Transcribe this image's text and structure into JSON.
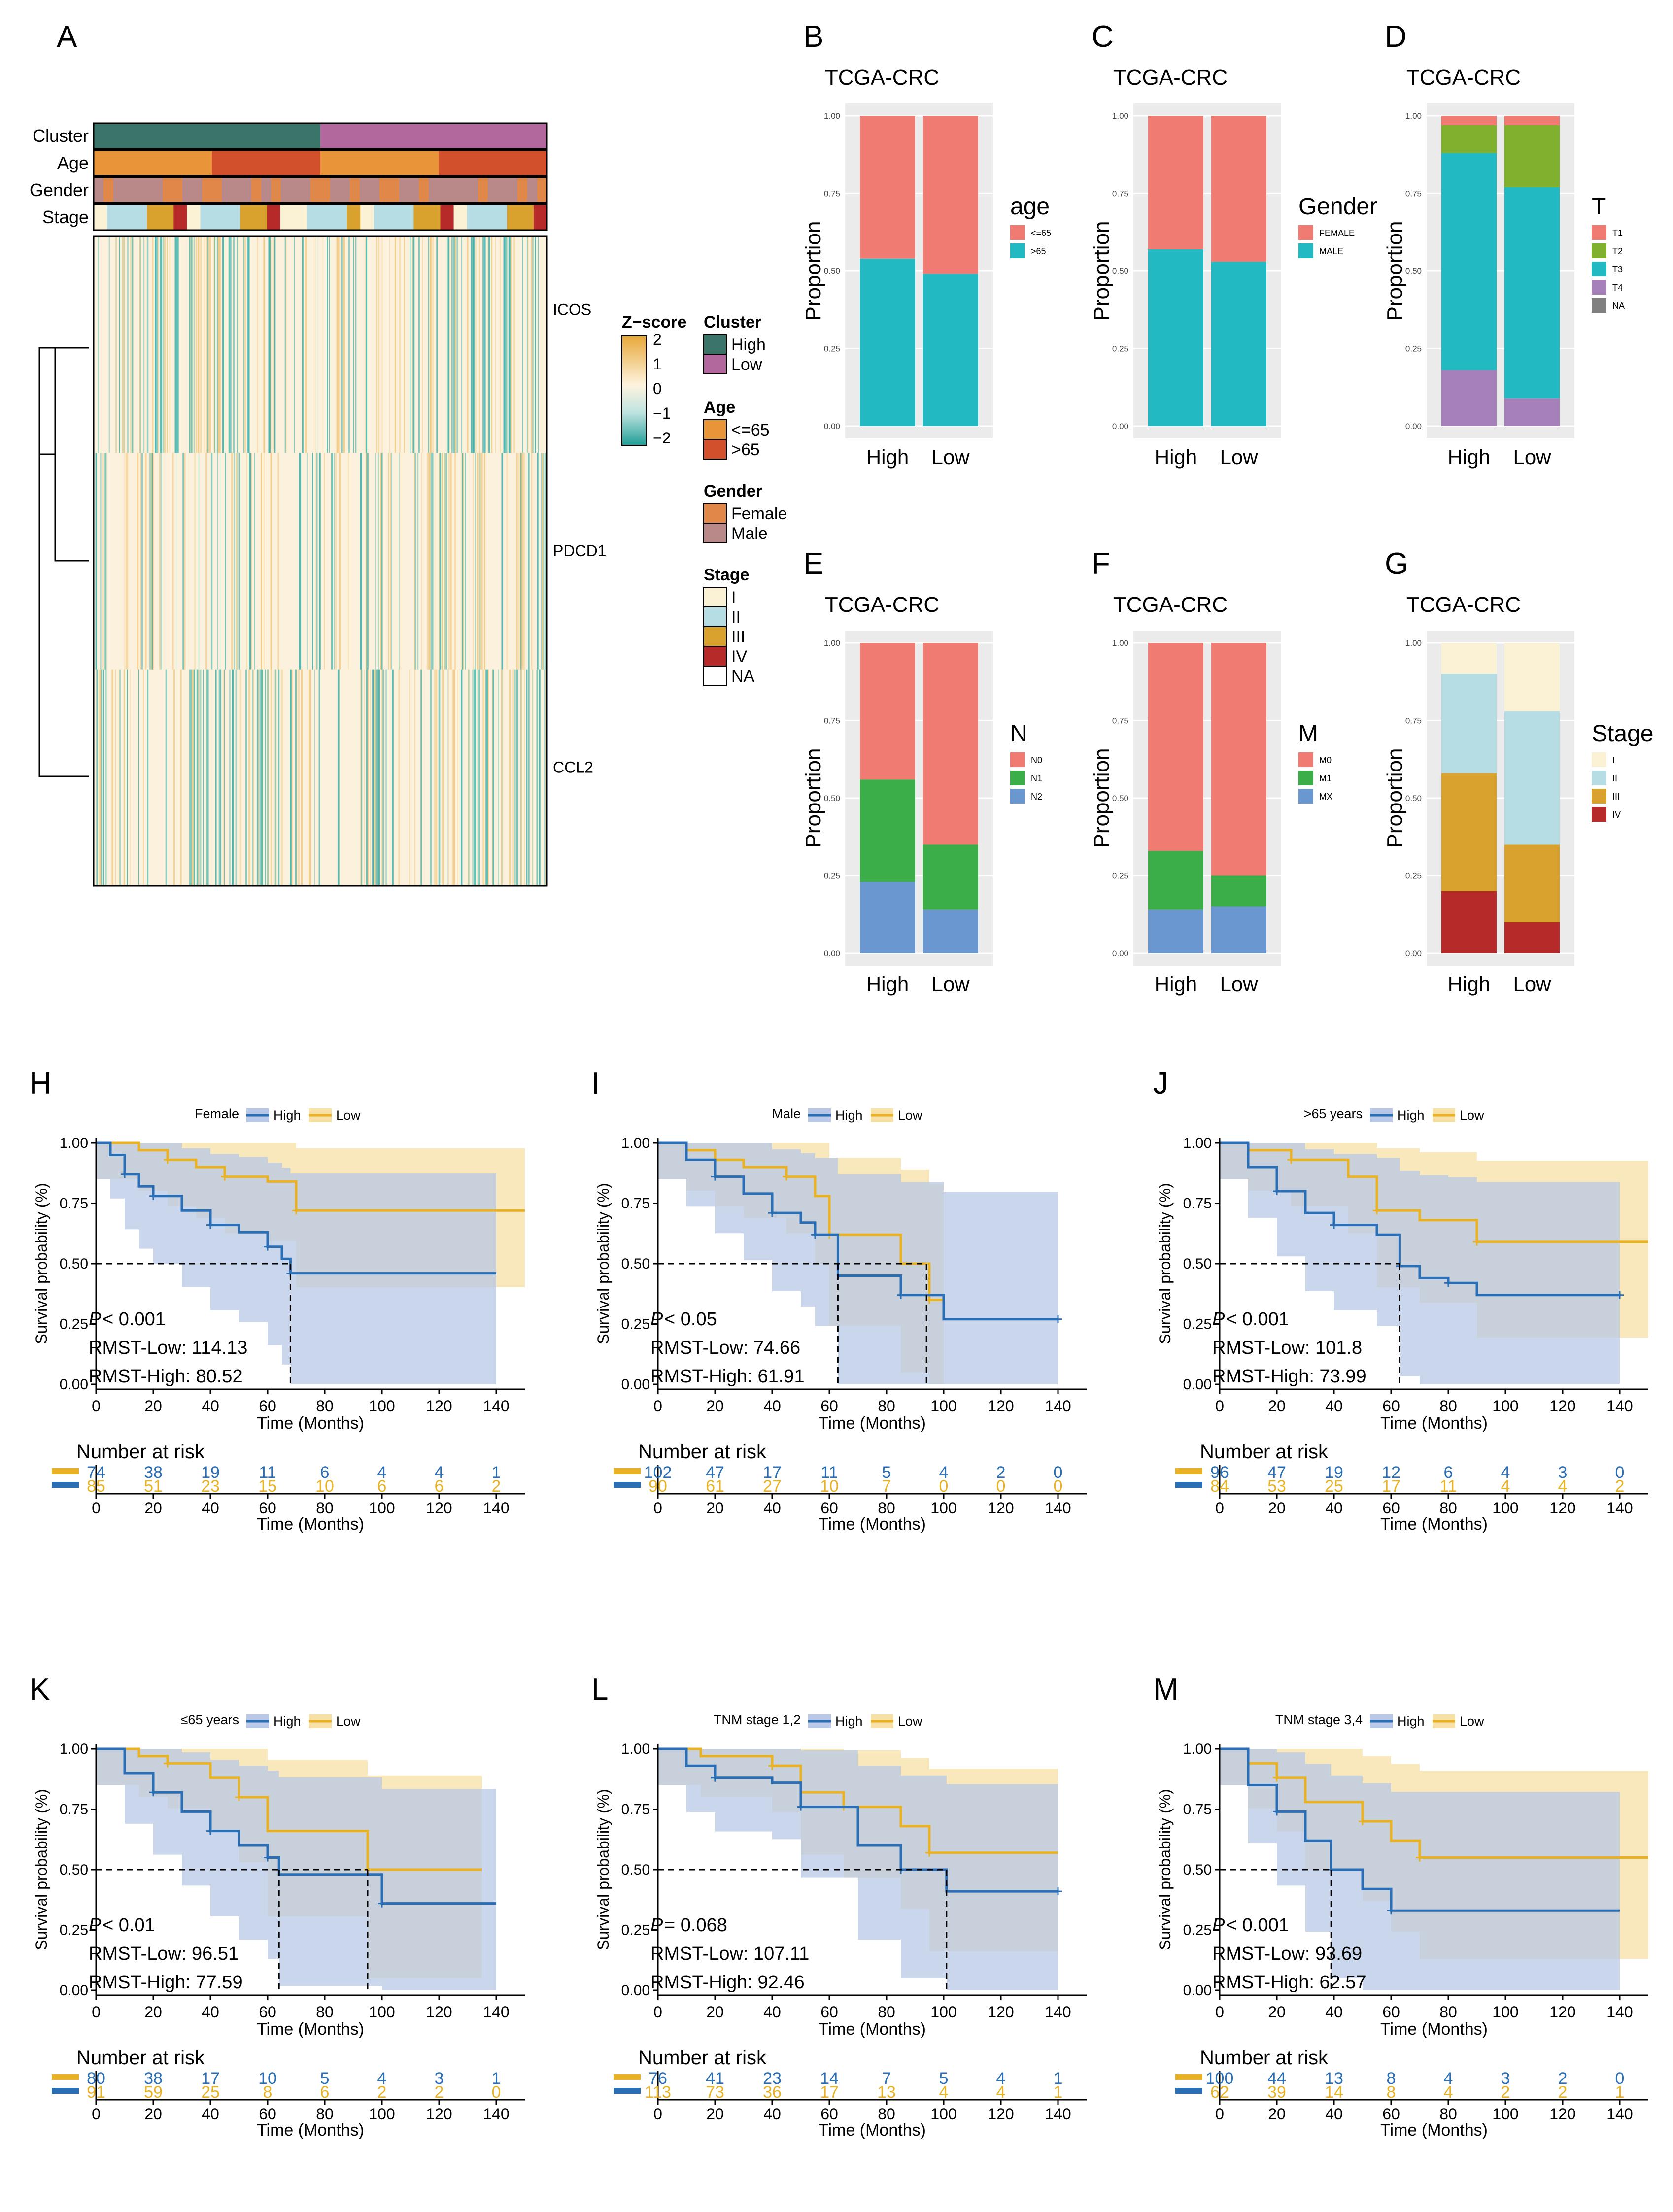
{
  "colors": {
    "high": "#2a6eb5",
    "low": "#e8b224",
    "highBand": "#b8c8e6",
    "lowBand": "#f6e0a6",
    "clusterHigh": "#3b7468",
    "clusterLow": "#b2689c",
    "ageYoung": "#e8953a",
    "ageOld": "#d2502c",
    "female": "#e0884a",
    "male": "#b9898a",
    "stageI": "#fbf1d5",
    "stageII": "#b7dde4",
    "stageIII": "#d9a22e",
    "stageIV": "#b72a2a",
    "red": "#f07b72",
    "cyan": "#22b9c2",
    "green": "#7fb12e",
    "purple": "#a680b9",
    "gray": "#808080",
    "nGreen": "#3cae49",
    "nBlue": "#6a97d0",
    "panelBg": "#ebebeb",
    "heatPos": "#f3c981",
    "heatNeg": "#3fb2ad"
  },
  "heatmap": {
    "panel_letter": "A",
    "row_labels": {
      "cluster": "Cluster",
      "age": "Age",
      "gender": "Gender",
      "stage": "Stage"
    },
    "genes": [
      "ICOS",
      "PDCD1",
      "CCL2"
    ],
    "zscore": {
      "title": "Z−score",
      "ticks": [
        "2",
        "1",
        "0",
        "−1",
        "−2"
      ]
    },
    "legend": {
      "cluster": {
        "title": "Cluster",
        "items": [
          "High",
          "Low"
        ]
      },
      "age": {
        "title": "Age",
        "items": [
          "<=65",
          ">65"
        ]
      },
      "gender": {
        "title": "Gender",
        "items": [
          "Female",
          "Male"
        ]
      },
      "stage": {
        "title": "Stage",
        "items": [
          "I",
          "II",
          "III",
          "IV",
          "NA"
        ]
      }
    }
  },
  "chart_data": [
    {
      "type": "bar",
      "panel": "B",
      "title": "TCGA-CRC",
      "ylabel": "Proportion",
      "categories": [
        "High",
        "Low"
      ],
      "ylim": [
        0,
        1
      ],
      "yticks": [
        "0.00",
        "0.25",
        "0.50",
        "0.75",
        "1.00"
      ],
      "legend_title": "age",
      "legend_items": [
        "<=65",
        ">65"
      ],
      "series": [
        {
          "name": ">65",
          "values": [
            0.54,
            0.49
          ]
        },
        {
          "name": "<=65",
          "values": [
            0.46,
            0.51
          ]
        }
      ]
    },
    {
      "type": "bar",
      "panel": "C",
      "title": "TCGA-CRC",
      "ylabel": "Proportion",
      "categories": [
        "High",
        "Low"
      ],
      "ylim": [
        0,
        1
      ],
      "yticks": [
        "0.00",
        "0.25",
        "0.50",
        "0.75",
        "1.00"
      ],
      "legend_title": "Gender",
      "legend_items": [
        "FEMALE",
        "MALE"
      ],
      "series": [
        {
          "name": "MALE",
          "values": [
            0.57,
            0.53
          ]
        },
        {
          "name": "FEMALE",
          "values": [
            0.43,
            0.47
          ]
        }
      ]
    },
    {
      "type": "bar",
      "panel": "D",
      "title": "TCGA-CRC",
      "ylabel": "Proportion",
      "categories": [
        "High",
        "Low"
      ],
      "ylim": [
        0,
        1
      ],
      "yticks": [
        "0.00",
        "0.25",
        "0.50",
        "0.75",
        "1.00"
      ],
      "legend_title": "T",
      "legend_items": [
        "T1",
        "T2",
        "T3",
        "T4",
        "NA"
      ],
      "series": [
        {
          "name": "T4",
          "values": [
            0.18,
            0.09
          ]
        },
        {
          "name": "T3",
          "values": [
            0.7,
            0.68
          ]
        },
        {
          "name": "T2",
          "values": [
            0.09,
            0.2
          ]
        },
        {
          "name": "T1",
          "values": [
            0.03,
            0.03
          ]
        }
      ]
    },
    {
      "type": "bar",
      "panel": "E",
      "title": "TCGA-CRC",
      "ylabel": "Proportion",
      "categories": [
        "High",
        "Low"
      ],
      "ylim": [
        0,
        1
      ],
      "yticks": [
        "0.00",
        "0.25",
        "0.50",
        "0.75",
        "1.00"
      ],
      "legend_title": "N",
      "legend_items": [
        "N0",
        "N1",
        "N2"
      ],
      "series": [
        {
          "name": "N2",
          "values": [
            0.23,
            0.14
          ]
        },
        {
          "name": "N1",
          "values": [
            0.33,
            0.21
          ]
        },
        {
          "name": "N0",
          "values": [
            0.44,
            0.65
          ]
        }
      ]
    },
    {
      "type": "bar",
      "panel": "F",
      "title": "TCGA-CRC",
      "ylabel": "Proportion",
      "categories": [
        "High",
        "Low"
      ],
      "ylim": [
        0,
        1
      ],
      "yticks": [
        "0.00",
        "0.25",
        "0.50",
        "0.75",
        "1.00"
      ],
      "legend_title": "M",
      "legend_items": [
        "M0",
        "M1",
        "MX"
      ],
      "series": [
        {
          "name": "MX",
          "values": [
            0.14,
            0.15
          ]
        },
        {
          "name": "M1",
          "values": [
            0.19,
            0.1
          ]
        },
        {
          "name": "M0",
          "values": [
            0.67,
            0.75
          ]
        }
      ]
    },
    {
      "type": "bar",
      "panel": "G",
      "title": "TCGA-CRC",
      "ylabel": "Proportion",
      "categories": [
        "High",
        "Low"
      ],
      "ylim": [
        0,
        1
      ],
      "yticks": [
        "0.00",
        "0.25",
        "0.50",
        "0.75",
        "1.00"
      ],
      "legend_title": "Stage",
      "legend_items": [
        "I",
        "II",
        "III",
        "IV"
      ],
      "series": [
        {
          "name": "IV",
          "values": [
            0.2,
            0.1
          ]
        },
        {
          "name": "III",
          "values": [
            0.38,
            0.25
          ]
        },
        {
          "name": "II",
          "values": [
            0.32,
            0.43
          ]
        },
        {
          "name": "I",
          "values": [
            0.1,
            0.22
          ]
        }
      ]
    },
    {
      "type": "line",
      "panel": "H",
      "subgroup": "Female",
      "legend_items": [
        "High",
        "Low"
      ],
      "xlabel": "Time (Months)",
      "ylabel": "Survival probability (%)",
      "xlim": [
        0,
        150
      ],
      "ylim": [
        0,
        1
      ],
      "xticks": [
        "0",
        "20",
        "40",
        "60",
        "80",
        "100",
        "120",
        "140"
      ],
      "yticks": [
        "0.00",
        "0.25",
        "0.50",
        "0.75",
        "1.00"
      ],
      "pvalue": "< 0.001",
      "rmst_low": "RMST-Low: 114.13",
      "rmst_high": "RMST-High: 80.52",
      "median_high": 68,
      "median_low": null,
      "high_curve": [
        [
          0,
          1
        ],
        [
          5,
          0.95
        ],
        [
          10,
          0.87
        ],
        [
          15,
          0.82
        ],
        [
          20,
          0.78
        ],
        [
          30,
          0.72
        ],
        [
          40,
          0.66
        ],
        [
          50,
          0.63
        ],
        [
          60,
          0.57
        ],
        [
          65,
          0.52
        ],
        [
          68,
          0.46
        ],
        [
          140,
          0.46
        ]
      ],
      "low_curve": [
        [
          0,
          1
        ],
        [
          15,
          0.97
        ],
        [
          25,
          0.93
        ],
        [
          35,
          0.9
        ],
        [
          45,
          0.86
        ],
        [
          60,
          0.84
        ],
        [
          70,
          0.72
        ],
        [
          150,
          0.72
        ]
      ],
      "risk_table": {
        "title": "Number at risk",
        "high": [
          "74",
          "38",
          "19",
          "11",
          "6",
          "4",
          "4",
          "1"
        ],
        "low": [
          "85",
          "51",
          "23",
          "15",
          "10",
          "6",
          "6",
          "2"
        ]
      }
    },
    {
      "type": "line",
      "panel": "I",
      "subgroup": "Male",
      "legend_items": [
        "High",
        "Low"
      ],
      "xlabel": "Time (Months)",
      "ylabel": "Survival probability (%)",
      "xlim": [
        0,
        150
      ],
      "ylim": [
        0,
        1
      ],
      "xticks": [
        "0",
        "20",
        "40",
        "60",
        "80",
        "100",
        "120",
        "140"
      ],
      "yticks": [
        "0.00",
        "0.25",
        "0.50",
        "0.75",
        "1.00"
      ],
      "pvalue": "< 0.05",
      "rmst_low": "RMST-Low: 74.66",
      "rmst_high": "RMST-High: 61.91",
      "median_high": 63,
      "median_low": 94,
      "high_curve": [
        [
          0,
          1
        ],
        [
          10,
          0.93
        ],
        [
          20,
          0.86
        ],
        [
          30,
          0.79
        ],
        [
          40,
          0.71
        ],
        [
          50,
          0.67
        ],
        [
          55,
          0.62
        ],
        [
          63,
          0.45
        ],
        [
          85,
          0.37
        ],
        [
          100,
          0.27
        ],
        [
          140,
          0.27
        ]
      ],
      "low_curve": [
        [
          0,
          1
        ],
        [
          10,
          0.97
        ],
        [
          20,
          0.93
        ],
        [
          30,
          0.9
        ],
        [
          45,
          0.86
        ],
        [
          55,
          0.78
        ],
        [
          60,
          0.62
        ],
        [
          85,
          0.5
        ],
        [
          95,
          0.35
        ],
        [
          100,
          0.35
        ]
      ],
      "risk_table": {
        "title": "Number at risk",
        "high": [
          "102",
          "47",
          "17",
          "11",
          "5",
          "4",
          "2",
          "0"
        ],
        "low": [
          "90",
          "61",
          "27",
          "10",
          "7",
          "0",
          "0",
          "0"
        ]
      }
    },
    {
      "type": "line",
      "panel": "J",
      "subgroup": ">65 years",
      "legend_items": [
        "High",
        "Low"
      ],
      "xlabel": "Time (Months)",
      "ylabel": "Survival probability (%)",
      "xlim": [
        0,
        150
      ],
      "ylim": [
        0,
        1
      ],
      "xticks": [
        "0",
        "20",
        "40",
        "60",
        "80",
        "100",
        "120",
        "140"
      ],
      "yticks": [
        "0.00",
        "0.25",
        "0.50",
        "0.75",
        "1.00"
      ],
      "pvalue": "< 0.001",
      "rmst_low": "RMST-Low: 101.8",
      "rmst_high": "RMST-High: 73.99",
      "median_high": 63,
      "median_low": null,
      "high_curve": [
        [
          0,
          1
        ],
        [
          10,
          0.9
        ],
        [
          20,
          0.8
        ],
        [
          30,
          0.71
        ],
        [
          40,
          0.66
        ],
        [
          55,
          0.62
        ],
        [
          63,
          0.49
        ],
        [
          70,
          0.44
        ],
        [
          80,
          0.42
        ],
        [
          90,
          0.37
        ],
        [
          140,
          0.37
        ]
      ],
      "low_curve": [
        [
          0,
          1
        ],
        [
          10,
          0.97
        ],
        [
          25,
          0.93
        ],
        [
          45,
          0.86
        ],
        [
          55,
          0.72
        ],
        [
          70,
          0.68
        ],
        [
          90,
          0.59
        ],
        [
          150,
          0.59
        ]
      ],
      "risk_table": {
        "title": "Number at risk",
        "high": [
          "96",
          "47",
          "19",
          "12",
          "6",
          "4",
          "3",
          "0"
        ],
        "low": [
          "84",
          "53",
          "25",
          "17",
          "11",
          "4",
          "4",
          "2"
        ]
      }
    },
    {
      "type": "line",
      "panel": "K",
      "subgroup": "≤65 years",
      "legend_items": [
        "High",
        "Low"
      ],
      "xlabel": "Time (Months)",
      "ylabel": "Survival probability (%)",
      "xlim": [
        0,
        150
      ],
      "ylim": [
        0,
        1
      ],
      "xticks": [
        "0",
        "20",
        "40",
        "60",
        "80",
        "100",
        "120",
        "140"
      ],
      "yticks": [
        "0.00",
        "0.25",
        "0.50",
        "0.75",
        "1.00"
      ],
      "pvalue": "< 0.01",
      "rmst_low": "RMST-Low: 96.51",
      "rmst_high": "RMST-High: 77.59",
      "median_high": 64,
      "median_low": 95,
      "high_curve": [
        [
          0,
          1
        ],
        [
          10,
          0.9
        ],
        [
          20,
          0.82
        ],
        [
          30,
          0.74
        ],
        [
          40,
          0.66
        ],
        [
          50,
          0.6
        ],
        [
          60,
          0.55
        ],
        [
          64,
          0.48
        ],
        [
          100,
          0.36
        ],
        [
          140,
          0.36
        ]
      ],
      "low_curve": [
        [
          0,
          1
        ],
        [
          15,
          0.97
        ],
        [
          25,
          0.94
        ],
        [
          40,
          0.88
        ],
        [
          50,
          0.8
        ],
        [
          60,
          0.66
        ],
        [
          95,
          0.5
        ],
        [
          135,
          0.5
        ]
      ],
      "risk_table": {
        "title": "Number at risk",
        "high": [
          "80",
          "38",
          "17",
          "10",
          "5",
          "4",
          "3",
          "1"
        ],
        "low": [
          "91",
          "59",
          "25",
          "8",
          "6",
          "2",
          "2",
          "0"
        ]
      }
    },
    {
      "type": "line",
      "panel": "L",
      "subgroup": "TNM stage 1,2",
      "legend_items": [
        "High",
        "Low"
      ],
      "xlabel": "Time (Months)",
      "ylabel": "Survival probability (%)",
      "xlim": [
        0,
        150
      ],
      "ylim": [
        0,
        1
      ],
      "xticks": [
        "0",
        "20",
        "40",
        "60",
        "80",
        "100",
        "120",
        "140"
      ],
      "yticks": [
        "0.00",
        "0.25",
        "0.50",
        "0.75",
        "1.00"
      ],
      "pvalue": "= 0.068",
      "rmst_low": "RMST-Low: 107.11",
      "rmst_high": "RMST-High: 92.46",
      "median_high": 101,
      "median_low": null,
      "high_curve": [
        [
          0,
          1
        ],
        [
          10,
          0.93
        ],
        [
          20,
          0.88
        ],
        [
          40,
          0.86
        ],
        [
          50,
          0.76
        ],
        [
          70,
          0.6
        ],
        [
          85,
          0.5
        ],
        [
          101,
          0.41
        ],
        [
          140,
          0.41
        ]
      ],
      "low_curve": [
        [
          0,
          1
        ],
        [
          15,
          0.97
        ],
        [
          40,
          0.93
        ],
        [
          50,
          0.82
        ],
        [
          65,
          0.76
        ],
        [
          85,
          0.68
        ],
        [
          95,
          0.57
        ],
        [
          140,
          0.57
        ]
      ],
      "risk_table": {
        "title": "Number at risk",
        "high": [
          "76",
          "41",
          "23",
          "14",
          "7",
          "5",
          "4",
          "1"
        ],
        "low": [
          "113",
          "73",
          "36",
          "17",
          "13",
          "4",
          "4",
          "1"
        ]
      }
    },
    {
      "type": "line",
      "panel": "M",
      "subgroup": "TNM stage 3,4",
      "legend_items": [
        "High",
        "Low"
      ],
      "xlabel": "Time (Months)",
      "ylabel": "Survival probability (%)",
      "xlim": [
        0,
        150
      ],
      "ylim": [
        0,
        1
      ],
      "xticks": [
        "0",
        "20",
        "40",
        "60",
        "80",
        "100",
        "120",
        "140"
      ],
      "yticks": [
        "0.00",
        "0.25",
        "0.50",
        "0.75",
        "1.00"
      ],
      "pvalue": "< 0.001",
      "rmst_low": "RMST-Low: 93.69",
      "rmst_high": "RMST-High: 62.57",
      "median_high": 39,
      "median_low": null,
      "high_curve": [
        [
          0,
          1
        ],
        [
          10,
          0.85
        ],
        [
          20,
          0.74
        ],
        [
          30,
          0.62
        ],
        [
          39,
          0.5
        ],
        [
          50,
          0.42
        ],
        [
          60,
          0.33
        ],
        [
          140,
          0.33
        ]
      ],
      "low_curve": [
        [
          0,
          1
        ],
        [
          10,
          0.94
        ],
        [
          20,
          0.88
        ],
        [
          30,
          0.78
        ],
        [
          50,
          0.7
        ],
        [
          60,
          0.62
        ],
        [
          70,
          0.55
        ],
        [
          150,
          0.55
        ]
      ],
      "risk_table": {
        "title": "Number at risk",
        "high": [
          "100",
          "44",
          "13",
          "8",
          "4",
          "3",
          "2",
          "0"
        ],
        "low": [
          "62",
          "39",
          "14",
          "8",
          "4",
          "2",
          "2",
          "1"
        ]
      }
    }
  ]
}
